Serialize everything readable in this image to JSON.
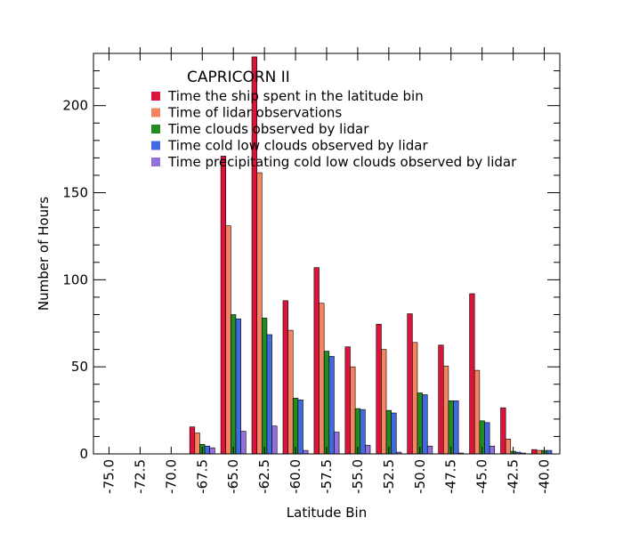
{
  "chart_data": {
    "type": "bar",
    "title": "CAPRICORN II",
    "xlabel": "Latitude Bin",
    "ylabel": "Number of Hours",
    "xlim": [
      -76.25,
      -38.75
    ],
    "ylim": [
      0,
      230
    ],
    "x": [
      -75.0,
      -72.5,
      -70.0,
      -67.5,
      -65.0,
      -62.5,
      -60.0,
      -57.5,
      -55.0,
      -52.5,
      -50.0,
      -47.5,
      -45.0,
      -42.5,
      -40.0
    ],
    "x_tick_labels": [
      "-75.0",
      "-72.5",
      "-70.0",
      "-67.5",
      "-65.0",
      "-62.5",
      "-60.0",
      "-57.5",
      "-55.0",
      "-52.5",
      "-50.0",
      "-47.5",
      "-45.0",
      "-42.5",
      "-40.0"
    ],
    "y_ticks": [
      0,
      50,
      100,
      150,
      200
    ],
    "y_tick_labels": [
      "0",
      "50",
      "100",
      "150",
      "200"
    ],
    "grid": false,
    "legend_position": "top",
    "series": [
      {
        "name": "Time the ship spent in the latitude bin",
        "color": "#dc143c",
        "values": [
          0,
          0,
          0,
          15.5,
          171,
          228,
          88,
          107,
          61.5,
          74.5,
          80.5,
          62.5,
          92,
          26.5,
          2.5
        ]
      },
      {
        "name": "Time of lidar observations",
        "color": "#f4845f",
        "values": [
          0,
          0,
          0,
          12,
          131,
          161.5,
          71,
          86.5,
          50,
          60,
          64,
          50.5,
          48,
          8.5,
          2
        ]
      },
      {
        "name": "Time clouds observed by lidar",
        "color": "#228b22",
        "values": [
          0,
          0,
          0,
          5.5,
          80,
          78,
          32,
          59,
          26,
          25,
          35,
          30.5,
          19,
          1.5,
          2
        ]
      },
      {
        "name": "Time cold low clouds observed by lidar",
        "color": "#4169e1",
        "values": [
          0,
          0,
          0,
          4.5,
          77.5,
          68.5,
          31,
          56,
          25.5,
          23.5,
          34,
          30.5,
          18,
          1,
          2
        ]
      },
      {
        "name": "Time precipitating cold low clouds observed by lidar",
        "color": "#9370db",
        "values": [
          0,
          0,
          0,
          3.5,
          13,
          16,
          2,
          12.5,
          5,
          1,
          4.5,
          0.5,
          4.5,
          0.5,
          0
        ]
      }
    ]
  }
}
